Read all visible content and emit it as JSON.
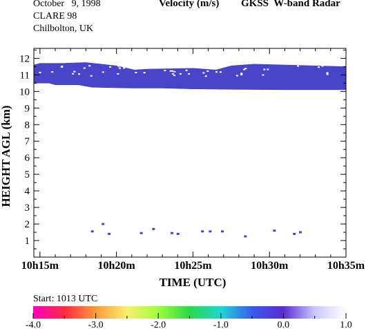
{
  "header": {
    "date_line": "October   9, 1998",
    "campaign": "CLARE 98",
    "site": "Chilbolton, UK",
    "title": "Velocity (m/s)",
    "instrument": "GKSS  W-band Radar"
  },
  "start_label": "Start: 1013 UTC",
  "colors": {
    "echo": "#4a44c8",
    "echo_edge": "#3c38b8",
    "gap": "#ffffff",
    "colorbar_stops": [
      "#ff00c0",
      "#ff2a44",
      "#ff9a3a",
      "#f8ef6e",
      "#9fff3a",
      "#2ad84a",
      "#1fd5d5",
      "#3a5af0",
      "#5a2cd0",
      "#c8c8ff",
      "#ffffff"
    ]
  },
  "chart_data": {
    "type": "heatmap",
    "title": "Velocity (m/s)",
    "xlabel": "TIME (UTC)",
    "ylabel": "HEIGHT AGL (km)",
    "x_ticks_min": [
      15,
      20,
      25,
      30,
      35
    ],
    "x_tick_labels": [
      "10h15m",
      "10h20m",
      "10h25m",
      "10h30m",
      "10h35m"
    ],
    "xlim_min": [
      14.6,
      35
    ],
    "y_ticks": [
      1,
      2,
      3,
      4,
      5,
      6,
      7,
      8,
      9,
      10,
      11,
      12
    ],
    "y_tick_labels": [
      "1",
      "2",
      "3",
      "4",
      "5",
      "6",
      "7",
      "8",
      "9",
      "10",
      "11",
      "12"
    ],
    "ylim_km": [
      0,
      12.6
    ],
    "grid": false,
    "cloud_layer": {
      "velocity_ms": 0.0,
      "base_km": [
        [
          14.6,
          10.5
        ],
        [
          15.6,
          10.5
        ],
        [
          16.0,
          10.4
        ],
        [
          17.5,
          10.4
        ],
        [
          18.4,
          10.25
        ],
        [
          21.0,
          10.2
        ],
        [
          23.0,
          10.2
        ],
        [
          25.0,
          10.15
        ],
        [
          28.0,
          10.12
        ],
        [
          31.0,
          10.1
        ],
        [
          35.0,
          10.1
        ]
      ],
      "top_km": [
        [
          14.6,
          11.6
        ],
        [
          15.0,
          11.7
        ],
        [
          16.5,
          11.7
        ],
        [
          18.0,
          11.75
        ],
        [
          19.0,
          11.65
        ],
        [
          20.0,
          11.55
        ],
        [
          21.2,
          11.3
        ],
        [
          22.0,
          11.35
        ],
        [
          25.0,
          11.4
        ],
        [
          26.5,
          11.3
        ],
        [
          27.5,
          11.55
        ],
        [
          29.0,
          11.65
        ],
        [
          31.0,
          11.6
        ],
        [
          33.0,
          11.55
        ],
        [
          35.0,
          11.5
        ]
      ]
    },
    "low_echoes": [
      {
        "t_min": 18.4,
        "h_km": 1.55,
        "velocity_ms": 0.0
      },
      {
        "t_min": 19.1,
        "h_km": 2.0,
        "velocity_ms": 0.0
      },
      {
        "t_min": 19.5,
        "h_km": 1.4,
        "velocity_ms": 0.0
      },
      {
        "t_min": 21.6,
        "h_km": 1.45,
        "velocity_ms": 0.0
      },
      {
        "t_min": 22.4,
        "h_km": 1.7,
        "velocity_ms": 0.0
      },
      {
        "t_min": 23.6,
        "h_km": 1.45,
        "velocity_ms": 0.0
      },
      {
        "t_min": 24.0,
        "h_km": 1.4,
        "velocity_ms": 0.0
      },
      {
        "t_min": 25.6,
        "h_km": 1.55,
        "velocity_ms": 0.0
      },
      {
        "t_min": 26.1,
        "h_km": 1.55,
        "velocity_ms": 0.0
      },
      {
        "t_min": 26.9,
        "h_km": 1.55,
        "velocity_ms": 0.0
      },
      {
        "t_min": 28.4,
        "h_km": 1.25,
        "velocity_ms": 0.0
      },
      {
        "t_min": 30.3,
        "h_km": 1.6,
        "velocity_ms": 0.0
      },
      {
        "t_min": 31.6,
        "h_km": 1.4,
        "velocity_ms": 0.0
      },
      {
        "t_min": 32.0,
        "h_km": 1.5,
        "velocity_ms": 0.0
      }
    ],
    "colorbar": {
      "min": -4.0,
      "max": 1.0,
      "ticks": [
        -4.0,
        -3.0,
        -2.0,
        -1.0,
        0.0,
        1.0
      ],
      "tick_labels": [
        "-4.0",
        "-3.0",
        "-2.0",
        "-1.0",
        "0.0",
        "1.0"
      ]
    }
  }
}
